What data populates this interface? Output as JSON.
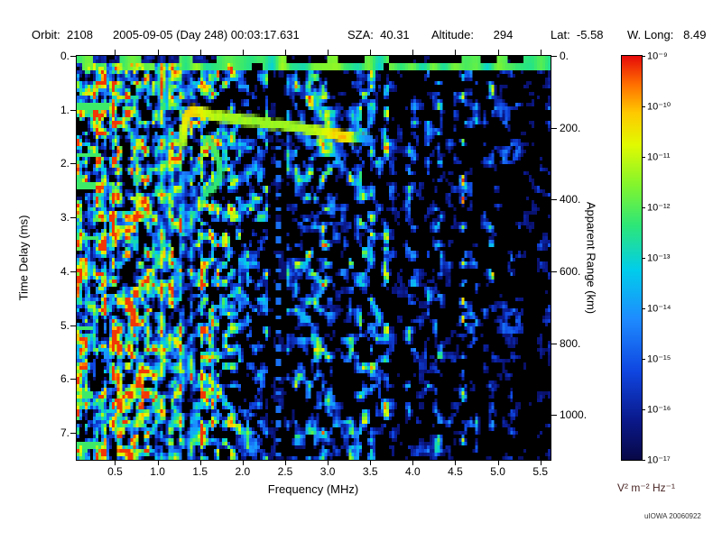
{
  "header": {
    "parts": [
      {
        "text": "Orbit:  2108"
      },
      {
        "text": "2005-09-05 (Day 248) 00:03:17.631"
      },
      {
        "text": "SZA:  40.31"
      },
      {
        "text": "Altitude:      294"
      },
      {
        "text": "Lat:  -5.58"
      },
      {
        "text": "W. Long:   8.49"
      }
    ]
  },
  "watermark": "uIOWA 20060922",
  "chart_data": {
    "type": "heatmap",
    "xlabel": "Frequency (MHz)",
    "ylabel": "Time Delay (ms)",
    "y2label": "Apparent Range (km)",
    "x_range": [
      0.05,
      5.62
    ],
    "y_range_ms": [
      0,
      7.5
    ],
    "y2_range_km": [
      0,
      1125
    ],
    "x_ticks": [
      {
        "v": 0.5,
        "label": "0.5"
      },
      {
        "v": 1.0,
        "label": "1.0"
      },
      {
        "v": 1.5,
        "label": "1.5"
      },
      {
        "v": 2.0,
        "label": "2.0"
      },
      {
        "v": 2.5,
        "label": "2.5"
      },
      {
        "v": 3.0,
        "label": "3.0"
      },
      {
        "v": 3.5,
        "label": "3.5"
      },
      {
        "v": 4.0,
        "label": "4.0"
      },
      {
        "v": 4.5,
        "label": "4.5"
      },
      {
        "v": 5.0,
        "label": "5.0"
      },
      {
        "v": 5.5,
        "label": "5.5"
      }
    ],
    "y_ticks": [
      {
        "v": 0,
        "label": "0."
      },
      {
        "v": 1,
        "label": "1."
      },
      {
        "v": 2,
        "label": "2."
      },
      {
        "v": 3,
        "label": "3."
      },
      {
        "v": 4,
        "label": "4."
      },
      {
        "v": 5,
        "label": "5."
      },
      {
        "v": 6,
        "label": "6."
      },
      {
        "v": 7,
        "label": "7."
      }
    ],
    "y2_ticks": [
      {
        "v": 0,
        "label": "0."
      },
      {
        "v": 200,
        "label": "200."
      },
      {
        "v": 400,
        "label": "400."
      },
      {
        "v": 600,
        "label": "600."
      },
      {
        "v": 800,
        "label": "800."
      },
      {
        "v": 1000,
        "label": "1000."
      }
    ],
    "colorbar": {
      "unit": "V² m⁻² Hz⁻¹",
      "ticks": [
        {
          "label": "10⁻⁹"
        },
        {
          "label": "10⁻¹⁰"
        },
        {
          "label": "10⁻¹¹"
        },
        {
          "label": "10⁻¹²"
        },
        {
          "label": "10⁻¹³"
        },
        {
          "label": "10⁻¹⁴"
        },
        {
          "label": "10⁻¹⁵"
        },
        {
          "label": "10⁻¹⁶"
        },
        {
          "label": "10⁻¹⁷"
        }
      ],
      "stops": [
        {
          "t": 0.0,
          "c": [
            8,
            8,
            70
          ]
        },
        {
          "t": 0.1,
          "c": [
            10,
            25,
            140
          ]
        },
        {
          "t": 0.22,
          "c": [
            15,
            70,
            225
          ]
        },
        {
          "t": 0.35,
          "c": [
            30,
            140,
            255
          ]
        },
        {
          "t": 0.47,
          "c": [
            0,
            205,
            235
          ]
        },
        {
          "t": 0.58,
          "c": [
            45,
            230,
            120
          ]
        },
        {
          "t": 0.68,
          "c": [
            130,
            245,
            45
          ]
        },
        {
          "t": 0.78,
          "c": [
            225,
            250,
            0
          ]
        },
        {
          "t": 0.86,
          "c": [
            255,
            200,
            0
          ]
        },
        {
          "t": 0.93,
          "c": [
            255,
            110,
            0
          ]
        },
        {
          "t": 1.0,
          "c": [
            230,
            10,
            10
          ]
        }
      ]
    },
    "features": {
      "seed": 1337,
      "ionosphere_echo_trace": [
        {
          "mhz": 1.3,
          "ms": 1.62,
          "a": 0.7
        },
        {
          "mhz": 1.31,
          "ms": 1.35,
          "a": 0.76
        },
        {
          "mhz": 1.34,
          "ms": 1.1,
          "a": 0.82
        },
        {
          "mhz": 1.42,
          "ms": 1.02,
          "a": 0.85
        },
        {
          "mhz": 1.55,
          "ms": 1.06,
          "a": 0.78
        },
        {
          "mhz": 1.75,
          "ms": 1.12,
          "a": 0.72
        },
        {
          "mhz": 2.0,
          "ms": 1.18,
          "a": 0.7
        },
        {
          "mhz": 2.3,
          "ms": 1.25,
          "a": 0.7
        },
        {
          "mhz": 2.6,
          "ms": 1.32,
          "a": 0.71
        },
        {
          "mhz": 2.9,
          "ms": 1.4,
          "a": 0.74
        },
        {
          "mhz": 3.1,
          "ms": 1.47,
          "a": 0.84
        },
        {
          "mhz": 3.28,
          "ms": 1.51,
          "a": 0.8
        },
        {
          "mhz": 3.4,
          "ms": 1.53,
          "a": 0.45
        },
        {
          "mhz": 3.5,
          "ms": 1.55,
          "a": 0.35
        }
      ],
      "echo_end_blob": {
        "mhz": 3.17,
        "ms": 1.5
      },
      "cusp_hook": [
        {
          "mhz": 1.6,
          "ms": 1.55,
          "a": 0.6
        },
        {
          "mhz": 1.68,
          "ms": 1.75,
          "a": 0.62
        },
        {
          "mhz": 1.73,
          "ms": 2.0,
          "a": 0.6
        },
        {
          "mhz": 1.74,
          "ms": 2.25,
          "a": 0.58
        },
        {
          "mhz": 1.66,
          "ms": 2.45,
          "a": 0.6
        },
        {
          "mhz": 1.56,
          "ms": 2.55,
          "a": 0.55
        }
      ],
      "plasma_harmonic_streaks": [
        {
          "mhz": 0.08,
          "w": 0.028,
          "a": 0.5
        },
        {
          "mhz": 0.17,
          "w": 0.02,
          "a": 0.42
        },
        {
          "mhz": 0.27,
          "w": 0.018,
          "a": 0.4
        },
        {
          "mhz": 0.37,
          "w": 0.018,
          "a": 0.46
        },
        {
          "mhz": 0.47,
          "w": 0.02,
          "a": 0.42
        },
        {
          "mhz": 0.55,
          "w": 0.018,
          "a": 0.52
        },
        {
          "mhz": 0.65,
          "w": 0.016,
          "a": 0.4
        },
        {
          "mhz": 0.76,
          "w": 0.018,
          "a": 0.44
        },
        {
          "mhz": 0.88,
          "w": 0.018,
          "a": 0.4
        },
        {
          "mhz": 0.97,
          "w": 0.018,
          "a": 0.44
        },
        {
          "mhz": 1.05,
          "w": 0.028,
          "a": 0.75
        },
        {
          "mhz": 1.16,
          "w": 0.018,
          "a": 0.42
        },
        {
          "mhz": 1.27,
          "w": 0.02,
          "a": 0.52
        },
        {
          "mhz": 1.4,
          "w": 0.018,
          "a": 0.38
        },
        {
          "mhz": 1.52,
          "w": 0.018,
          "a": 0.42
        },
        {
          "mhz": 1.65,
          "w": 0.018,
          "a": 0.4
        }
      ],
      "horizontal_band_ms": 0.215,
      "dash_row_ms": 0.07,
      "left_noise_dashes": [
        {
          "f0": 0.05,
          "f1": 0.45,
          "ms": 0.95
        },
        {
          "f0": 0.05,
          "f1": 0.33,
          "ms": 1.85
        },
        {
          "f0": 0.05,
          "f1": 0.26,
          "ms": 2.42
        },
        {
          "f0": 0.05,
          "f1": 0.3,
          "ms": 3.38
        },
        {
          "f0": 0.05,
          "f1": 0.25,
          "ms": 5.05
        },
        {
          "f0": 0.05,
          "f1": 0.25,
          "ms": 6.3
        },
        {
          "f0": 0.05,
          "f1": 0.38,
          "ms": 7.25
        }
      ],
      "attenuated_band_mhz": [
        2.3,
        2.52
      ],
      "dotted_column_mhz": 2.42
    }
  }
}
